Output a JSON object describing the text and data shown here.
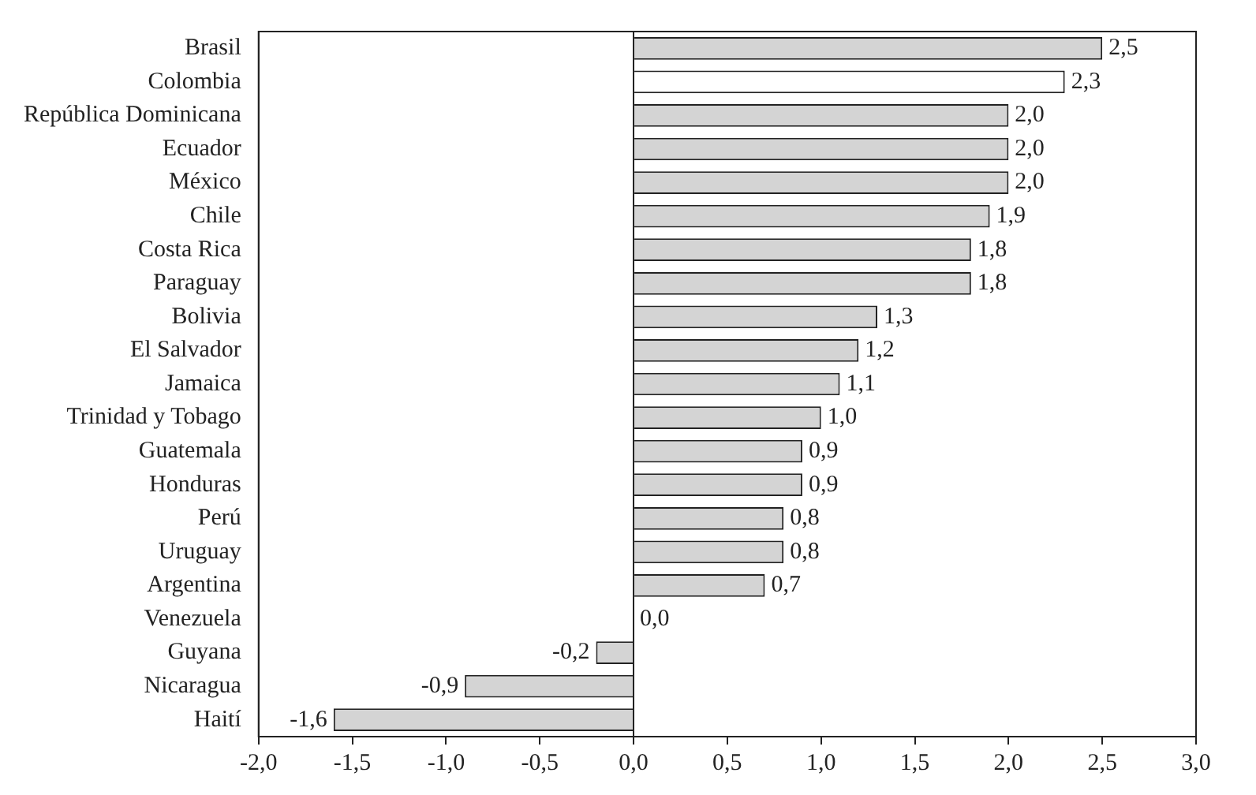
{
  "chart_data": {
    "type": "bar",
    "orientation": "horizontal",
    "categories": [
      "Brasil",
      "Colombia",
      "República Dominicana",
      "Ecuador",
      "México",
      "Chile",
      "Costa Rica",
      "Paraguay",
      "Bolivia",
      "El Salvador",
      "Jamaica",
      "Trinidad y Tobago",
      "Guatemala",
      "Honduras",
      "Perú",
      "Uruguay",
      "Argentina",
      "Venezuela",
      "Guyana",
      "Nicaragua",
      "Haití"
    ],
    "values": [
      2.5,
      2.3,
      2.0,
      2.0,
      2.0,
      1.9,
      1.8,
      1.8,
      1.3,
      1.2,
      1.1,
      1.0,
      0.9,
      0.9,
      0.8,
      0.8,
      0.7,
      0.0,
      -0.2,
      -0.9,
      -1.6
    ],
    "colors": [
      "#d4d4d4",
      "#ffffff",
      "#d4d4d4",
      "#d4d4d4",
      "#d4d4d4",
      "#d4d4d4",
      "#d4d4d4",
      "#d4d4d4",
      "#d4d4d4",
      "#d4d4d4",
      "#d4d4d4",
      "#d4d4d4",
      "#d4d4d4",
      "#d4d4d4",
      "#d4d4d4",
      "#d4d4d4",
      "#d4d4d4",
      "#d4d4d4",
      "#d4d4d4",
      "#d4d4d4",
      "#d4d4d4"
    ],
    "value_labels": [
      "2,5",
      "2,3",
      "2,0",
      "2,0",
      "2,0",
      "1,9",
      "1,8",
      "1,8",
      "1,3",
      "1,2",
      "1,1",
      "1,0",
      "0,9",
      "0,9",
      "0,8",
      "0,8",
      "0,7",
      "0,0",
      "-0,2",
      "-0,9",
      "-1,6"
    ],
    "xlim": [
      -2.0,
      3.0
    ],
    "xticks": [
      {
        "value": -2.0,
        "label": "-2,0"
      },
      {
        "value": -1.5,
        "label": "-1,5"
      },
      {
        "value": -1.0,
        "label": "-1,0"
      },
      {
        "value": -0.5,
        "label": "-0,5"
      },
      {
        "value": 0.0,
        "label": "0,0"
      },
      {
        "value": 0.5,
        "label": "0,5"
      },
      {
        "value": 1.0,
        "label": "1,0"
      },
      {
        "value": 1.5,
        "label": "1,5"
      },
      {
        "value": 2.0,
        "label": "2,0"
      },
      {
        "value": 2.5,
        "label": "2,5"
      },
      {
        "value": 3.0,
        "label": "3,0"
      }
    ],
    "legend": false
  }
}
